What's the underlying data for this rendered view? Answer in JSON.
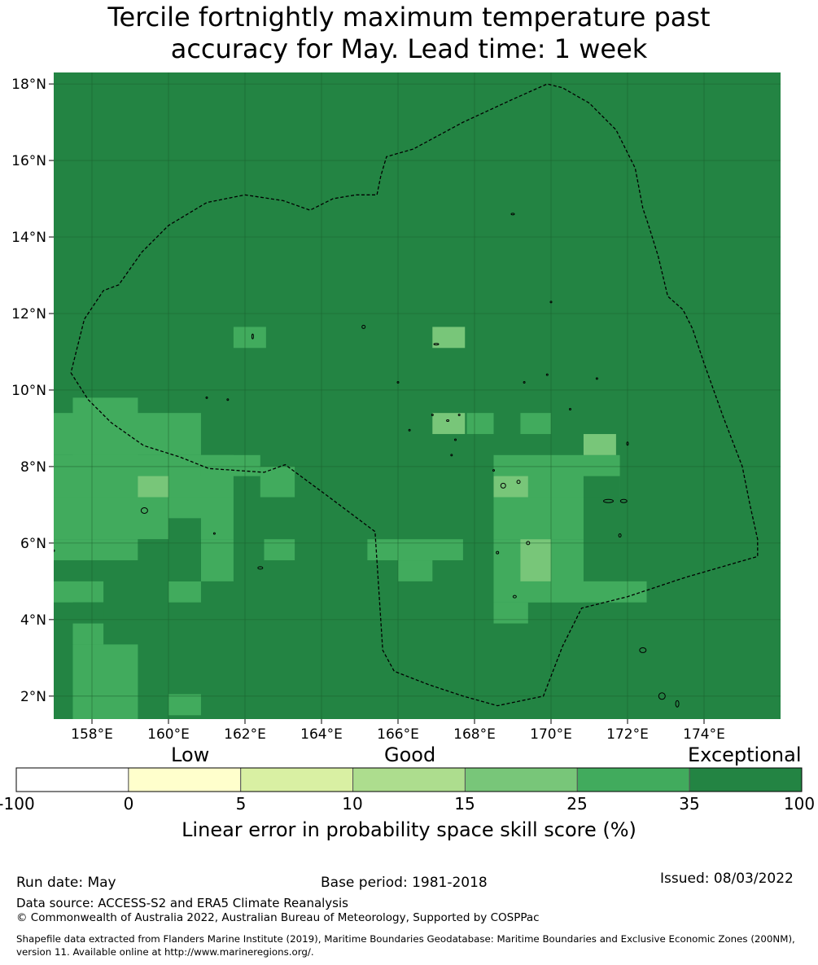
{
  "title_line1": "Tercile fortnightly maximum temperature past",
  "title_line2": "accuracy for May. Lead time: 1 week",
  "map": {
    "lon_range": [
      157.0,
      176.0
    ],
    "lat_range": [
      1.4,
      18.3
    ],
    "lat_ticks": [
      "18°N",
      "16°N",
      "14°N",
      "12°N",
      "10°N",
      "8°N",
      "6°N",
      "4°N",
      "2°N"
    ],
    "lat_tick_values": [
      18,
      16,
      14,
      12,
      10,
      8,
      6,
      4,
      2
    ],
    "lon_ticks": [
      "158°E",
      "160°E",
      "162°E",
      "164°E",
      "166°E",
      "168°E",
      "170°E",
      "172°E",
      "174°E"
    ],
    "lon_tick_values": [
      158,
      160,
      162,
      164,
      166,
      168,
      170,
      172,
      174
    ],
    "grid": true,
    "background_category": "35-100",
    "boundary": "Marshall Islands EEZ (dashed)"
  },
  "colorbar": {
    "quality_labels": [
      "Low",
      "Good",
      "Exceptional"
    ],
    "ticks": [
      "-100",
      "0",
      "5",
      "10",
      "15",
      "25",
      "35",
      "100"
    ],
    "colors": [
      "#ffffff",
      "#ffffcc",
      "#d9f0a3",
      "#addd8e",
      "#78c679",
      "#41ab5d",
      "#238443"
    ],
    "title": "Linear error in probability space skill score (%)"
  },
  "footer": {
    "run_date": "Run date: May",
    "base_period": "Base period: 1981-2018",
    "issued": "Issued: 08/03/2022",
    "data_source": "Data source: ACCESS-S2 and ERA5 Climate Reanalysis",
    "copyright": "© Commonwealth of Australia 2022, Australian Bureau of Meteorology, Supported by COSPPac",
    "shapefile_line1": "Shapefile data extracted from Flanders Marine Institute (2019), Maritime Boundaries Geodatabase: Maritime Boundaries and Exclusive Economic Zones (200NM),",
    "shapefile_line2": "version 11. Available online at http://www.marineregions.org/."
  }
}
